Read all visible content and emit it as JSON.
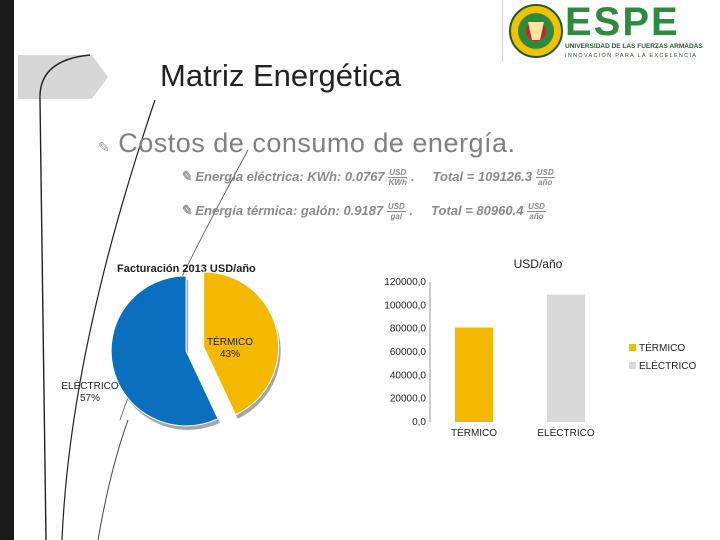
{
  "slide": {
    "title": "Matriz Energética",
    "bullet": "Costos de consumo de energía.",
    "formulas": [
      {
        "label": "Energía eléctrica: KWh: 0.0767",
        "unit_num": "USD",
        "unit_den": "KWh",
        "sep": ".",
        "total": "Total = 109126.3",
        "total_num": "USD",
        "total_den": "año"
      },
      {
        "label": "Energía térmica: galón: 0.9187",
        "unit_num": "USD",
        "unit_den": "gal",
        "sep": ".",
        "total": "Total = 80960.4",
        "total_num": "USD",
        "total_den": "año"
      }
    ]
  },
  "logo": {
    "brand": "ESPE",
    "line1": "UNIVERSIDAD DE LAS FUERZAS ARMADAS",
    "line2": "INNOVACIÓN PARA LA EXCELENCIA",
    "green": "#2e8b3e",
    "dark": "#1d5c2a"
  },
  "colors": {
    "termico": "#f5b800",
    "electrico": "#0b6fbf",
    "bar_electrico": "#d9d9d9"
  },
  "chart_data": [
    {
      "type": "pie",
      "title": "Facturación 2013 USD/año",
      "slices": [
        {
          "label": "TÉRMICO",
          "pct_label": "43%",
          "value": 43
        },
        {
          "label": "ELÉCTRICO",
          "pct_label": "57%",
          "value": 57
        }
      ]
    },
    {
      "type": "bar",
      "title": "USD/año",
      "categories": [
        "TÉRMICO",
        "ELÉCTRICO"
      ],
      "values": [
        80960.4,
        109126.3
      ],
      "ylim": [
        0,
        120000
      ],
      "yticks": [
        "0,0",
        "20000,0",
        "40000,0",
        "60000,0",
        "80000,0",
        "100000,0",
        "120000,0"
      ],
      "legend": [
        "TÉRMICO",
        "ELÉCTRICO"
      ],
      "legend_position": "right",
      "grid": false
    }
  ]
}
